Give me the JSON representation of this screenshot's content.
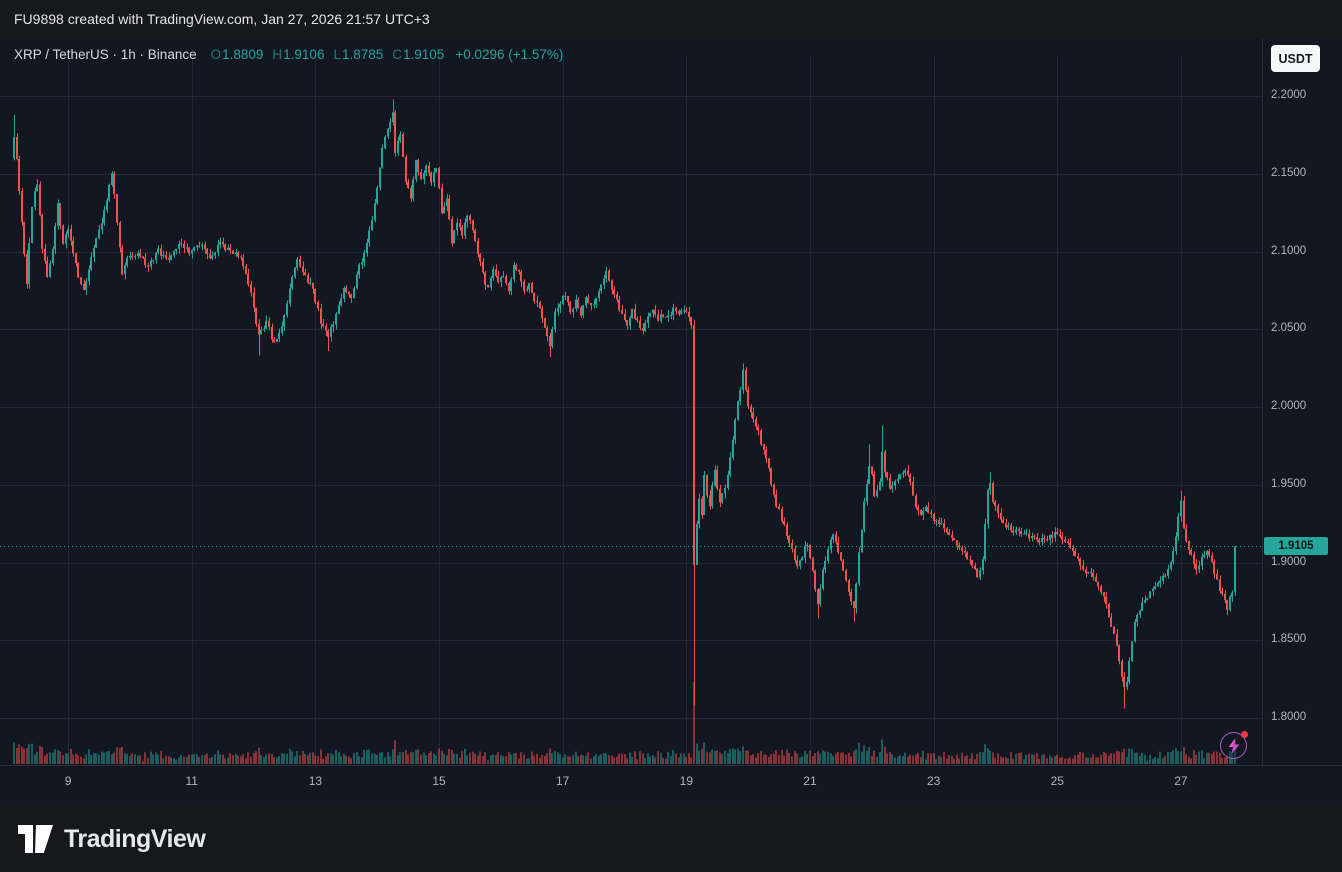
{
  "top_bar": {
    "caption": "FU9898 created with TradingView.com, Jan 27, 2026 21:57 UTC+3"
  },
  "legend": {
    "symbol": "XRP / TetherUS · 1h · Binance",
    "o_label": "O",
    "open": "1.8809",
    "h_label": "H",
    "high": "1.9106",
    "l_label": "L",
    "low": "1.8785",
    "c_label": "C",
    "close": "1.9105",
    "change": "+0.0296 (+1.57%)"
  },
  "toolbar": {
    "currency_label": "USDT"
  },
  "footer": {
    "brand": "TradingView"
  },
  "chart_data": {
    "type": "candlestick",
    "symbol": "XRPUSDT",
    "exchange": "Binance",
    "interval": "1h",
    "title": "XRP / TetherUS",
    "last_price_label": "1.9105",
    "price_line": 1.9105,
    "last_candle": {
      "o": 1.8809,
      "h": 1.9106,
      "l": 1.8785,
      "c": 1.9105
    },
    "change_abs": 0.0296,
    "change_pct": 1.57,
    "ylim": [
      1.78,
      2.22
    ],
    "y_ticks": [
      {
        "label": "2.2000",
        "value": 2.2
      },
      {
        "label": "2.1500",
        "value": 2.15
      },
      {
        "label": "2.1000",
        "value": 2.1
      },
      {
        "label": "2.0500",
        "value": 2.05
      },
      {
        "label": "2.0000",
        "value": 2.0
      },
      {
        "label": "1.9500",
        "value": 1.95
      },
      {
        "label": "1.9000",
        "value": 1.9
      },
      {
        "label": "1.8500",
        "value": 1.85
      },
      {
        "label": "1.8000",
        "value": 1.8
      }
    ],
    "x_ticks": [
      {
        "label": "9",
        "t": 24
      },
      {
        "label": "11",
        "t": 72
      },
      {
        "label": "13",
        "t": 120
      },
      {
        "label": "15",
        "t": 168
      },
      {
        "label": "17",
        "t": 216
      },
      {
        "label": "19",
        "t": 264
      },
      {
        "label": "21",
        "t": 312
      },
      {
        "label": "23",
        "t": 360
      },
      {
        "label": "25",
        "t": 408
      },
      {
        "label": "27",
        "t": 456
      }
    ],
    "t0": 3,
    "t1": 478,
    "waypoints": [
      [
        3,
        2.16
      ],
      [
        4,
        2.175
      ],
      [
        6,
        2.14
      ],
      [
        8,
        2.1
      ],
      [
        9,
        2.08
      ],
      [
        11,
        2.13
      ],
      [
        13,
        2.145
      ],
      [
        15,
        2.1
      ],
      [
        17,
        2.085
      ],
      [
        19,
        2.1
      ],
      [
        21,
        2.13
      ],
      [
        23,
        2.105
      ],
      [
        25,
        2.115
      ],
      [
        27,
        2.1
      ],
      [
        29,
        2.085
      ],
      [
        31,
        2.075
      ],
      [
        33,
        2.09
      ],
      [
        36,
        2.11
      ],
      [
        39,
        2.125
      ],
      [
        42,
        2.15
      ],
      [
        44,
        2.12
      ],
      [
        46,
        2.085
      ],
      [
        48,
        2.095
      ],
      [
        52,
        2.1
      ],
      [
        56,
        2.09
      ],
      [
        60,
        2.1
      ],
      [
        64,
        2.095
      ],
      [
        68,
        2.105
      ],
      [
        72,
        2.1
      ],
      [
        76,
        2.105
      ],
      [
        80,
        2.095
      ],
      [
        84,
        2.105
      ],
      [
        88,
        2.1
      ],
      [
        92,
        2.095
      ],
      [
        96,
        2.075
      ],
      [
        99,
        2.045
      ],
      [
        102,
        2.055
      ],
      [
        105,
        2.04
      ],
      [
        108,
        2.05
      ],
      [
        111,
        2.075
      ],
      [
        114,
        2.095
      ],
      [
        117,
        2.085
      ],
      [
        120,
        2.075
      ],
      [
        123,
        2.055
      ],
      [
        126,
        2.045
      ],
      [
        129,
        2.06
      ],
      [
        132,
        2.075
      ],
      [
        135,
        2.07
      ],
      [
        138,
        2.09
      ],
      [
        141,
        2.105
      ],
      [
        144,
        2.13
      ],
      [
        146,
        2.155
      ],
      [
        148,
        2.175
      ],
      [
        150,
        2.185
      ],
      [
        151,
        2.19
      ],
      [
        152,
        2.165
      ],
      [
        154,
        2.175
      ],
      [
        156,
        2.145
      ],
      [
        158,
        2.135
      ],
      [
        160,
        2.16
      ],
      [
        162,
        2.145
      ],
      [
        164,
        2.155
      ],
      [
        166,
        2.145
      ],
      [
        168,
        2.155
      ],
      [
        170,
        2.125
      ],
      [
        172,
        2.135
      ],
      [
        174,
        2.105
      ],
      [
        176,
        2.12
      ],
      [
        178,
        2.11
      ],
      [
        180,
        2.125
      ],
      [
        182,
        2.115
      ],
      [
        184,
        2.1
      ],
      [
        186,
        2.085
      ],
      [
        188,
        2.075
      ],
      [
        190,
        2.09
      ],
      [
        192,
        2.08
      ],
      [
        194,
        2.085
      ],
      [
        196,
        2.075
      ],
      [
        198,
        2.09
      ],
      [
        200,
        2.085
      ],
      [
        202,
        2.075
      ],
      [
        204,
        2.08
      ],
      [
        206,
        2.07
      ],
      [
        208,
        2.065
      ],
      [
        210,
        2.05
      ],
      [
        212,
        2.04
      ],
      [
        214,
        2.06
      ],
      [
        216,
        2.068
      ],
      [
        218,
        2.072
      ],
      [
        220,
        2.062
      ],
      [
        222,
        2.068
      ],
      [
        224,
        2.06
      ],
      [
        226,
        2.072
      ],
      [
        228,
        2.065
      ],
      [
        230,
        2.07
      ],
      [
        232,
        2.08
      ],
      [
        234,
        2.088
      ],
      [
        236,
        2.075
      ],
      [
        238,
        2.068
      ],
      [
        240,
        2.058
      ],
      [
        242,
        2.052
      ],
      [
        244,
        2.062
      ],
      [
        246,
        2.055
      ],
      [
        248,
        2.05
      ],
      [
        250,
        2.058
      ],
      [
        252,
        2.062
      ],
      [
        254,
        2.055
      ],
      [
        256,
        2.06
      ],
      [
        258,
        2.058
      ],
      [
        260,
        2.064
      ],
      [
        262,
        2.06
      ],
      [
        264,
        2.062
      ],
      [
        266,
        2.058
      ],
      [
        267,
        2.052
      ],
      [
        268,
        1.9
      ],
      [
        269,
        1.925
      ],
      [
        270,
        1.94
      ],
      [
        271,
        1.93
      ],
      [
        272,
        1.955
      ],
      [
        273,
        1.945
      ],
      [
        274,
        1.938
      ],
      [
        275,
        1.95
      ],
      [
        276,
        1.958
      ],
      [
        277,
        1.948
      ],
      [
        278,
        1.938
      ],
      [
        280,
        1.948
      ],
      [
        282,
        1.968
      ],
      [
        284,
        1.992
      ],
      [
        286,
        2.012
      ],
      [
        287,
        2.022
      ],
      [
        288,
        2.01
      ],
      [
        289,
        2.0
      ],
      [
        290,
        1.995
      ],
      [
        292,
        1.988
      ],
      [
        294,
        1.978
      ],
      [
        296,
        1.968
      ],
      [
        298,
        1.952
      ],
      [
        300,
        1.938
      ],
      [
        302,
        1.928
      ],
      [
        304,
        1.918
      ],
      [
        306,
        1.908
      ],
      [
        308,
        1.898
      ],
      [
        310,
        1.905
      ],
      [
        312,
        1.912
      ],
      [
        314,
        1.895
      ],
      [
        316,
        1.872
      ],
      [
        317,
        1.882
      ],
      [
        318,
        1.895
      ],
      [
        320,
        1.908
      ],
      [
        322,
        1.918
      ],
      [
        324,
        1.908
      ],
      [
        326,
        1.895
      ],
      [
        328,
        1.882
      ],
      [
        330,
        1.87
      ],
      [
        332,
        1.905
      ],
      [
        334,
        1.94
      ],
      [
        336,
        1.962
      ],
      [
        337,
        1.955
      ],
      [
        338,
        1.942
      ],
      [
        340,
        1.952
      ],
      [
        341,
        1.972
      ],
      [
        342,
        1.96
      ],
      [
        344,
        1.948
      ],
      [
        346,
        1.952
      ],
      [
        348,
        1.956
      ],
      [
        350,
        1.96
      ],
      [
        352,
        1.95
      ],
      [
        354,
        1.935
      ],
      [
        356,
        1.932
      ],
      [
        358,
        1.936
      ],
      [
        360,
        1.93
      ],
      [
        362,
        1.927
      ],
      [
        364,
        1.924
      ],
      [
        366,
        1.92
      ],
      [
        368,
        1.915
      ],
      [
        370,
        1.91
      ],
      [
        372,
        1.906
      ],
      [
        374,
        1.903
      ],
      [
        376,
        1.898
      ],
      [
        378,
        1.89
      ],
      [
        380,
        1.902
      ],
      [
        382,
        1.948
      ],
      [
        383,
        1.952
      ],
      [
        384,
        1.94
      ],
      [
        386,
        1.93
      ],
      [
        388,
        1.926
      ],
      [
        390,
        1.923
      ],
      [
        392,
        1.92
      ],
      [
        394,
        1.921
      ],
      [
        396,
        1.919
      ],
      [
        398,
        1.917
      ],
      [
        400,
        1.916
      ],
      [
        402,
        1.915
      ],
      [
        404,
        1.914
      ],
      [
        406,
        1.916
      ],
      [
        408,
        1.918
      ],
      [
        410,
        1.916
      ],
      [
        412,
        1.913
      ],
      [
        414,
        1.909
      ],
      [
        416,
        1.903
      ],
      [
        418,
        1.898
      ],
      [
        420,
        1.895
      ],
      [
        422,
        1.892
      ],
      [
        424,
        1.889
      ],
      [
        426,
        1.882
      ],
      [
        428,
        1.872
      ],
      [
        430,
        1.86
      ],
      [
        432,
        1.848
      ],
      [
        434,
        1.828
      ],
      [
        435,
        1.818
      ],
      [
        436,
        1.824
      ],
      [
        437,
        1.835
      ],
      [
        438,
        1.85
      ],
      [
        439,
        1.86
      ],
      [
        441,
        1.87
      ],
      [
        443,
        1.876
      ],
      [
        445,
        1.88
      ],
      [
        447,
        1.884
      ],
      [
        449,
        1.888
      ],
      [
        451,
        1.893
      ],
      [
        453,
        1.902
      ],
      [
        455,
        1.916
      ],
      [
        456,
        1.93
      ],
      [
        457,
        1.941
      ],
      [
        458,
        1.922
      ],
      [
        459,
        1.912
      ],
      [
        461,
        1.904
      ],
      [
        463,
        1.897
      ],
      [
        465,
        1.902
      ],
      [
        467,
        1.906
      ],
      [
        469,
        1.899
      ],
      [
        471,
        1.888
      ],
      [
        473,
        1.879
      ],
      [
        475,
        1.871
      ],
      [
        476,
        1.877
      ],
      [
        477,
        1.8809
      ],
      [
        478,
        1.9105
      ]
    ],
    "spikes": [
      {
        "t": 3,
        "h": 2.188
      },
      {
        "t": 98,
        "l": 2.033
      },
      {
        "t": 125,
        "l": 2.036
      },
      {
        "t": 150,
        "h": 2.198
      },
      {
        "t": 211,
        "l": 2.032
      },
      {
        "t": 267,
        "l": 1.808
      },
      {
        "t": 286,
        "h": 2.028
      },
      {
        "t": 315,
        "l": 1.864
      },
      {
        "t": 329,
        "l": 1.862
      },
      {
        "t": 335,
        "h": 1.976
      },
      {
        "t": 340,
        "h": 1.988
      },
      {
        "t": 382,
        "h": 1.958
      },
      {
        "t": 434,
        "l": 1.806
      },
      {
        "t": 456,
        "h": 1.946
      }
    ],
    "colors": {
      "bg": "#131722",
      "up": "#26a69a",
      "down": "#ef5350",
      "vol_up": "rgba(38,166,154,0.5)",
      "vol_down": "rgba(239,83,80,0.5)",
      "grid": "rgba(54,60,78,0.45)",
      "axis_border": "#2a2e39",
      "axis_text": "#b2b5be",
      "price_label_bg": "#26a69a",
      "boost_top": "#ff5b99",
      "boost_bottom": "#a64df6",
      "notification_dot": "#f23645"
    },
    "legend_position": "top-left",
    "grid": true
  }
}
